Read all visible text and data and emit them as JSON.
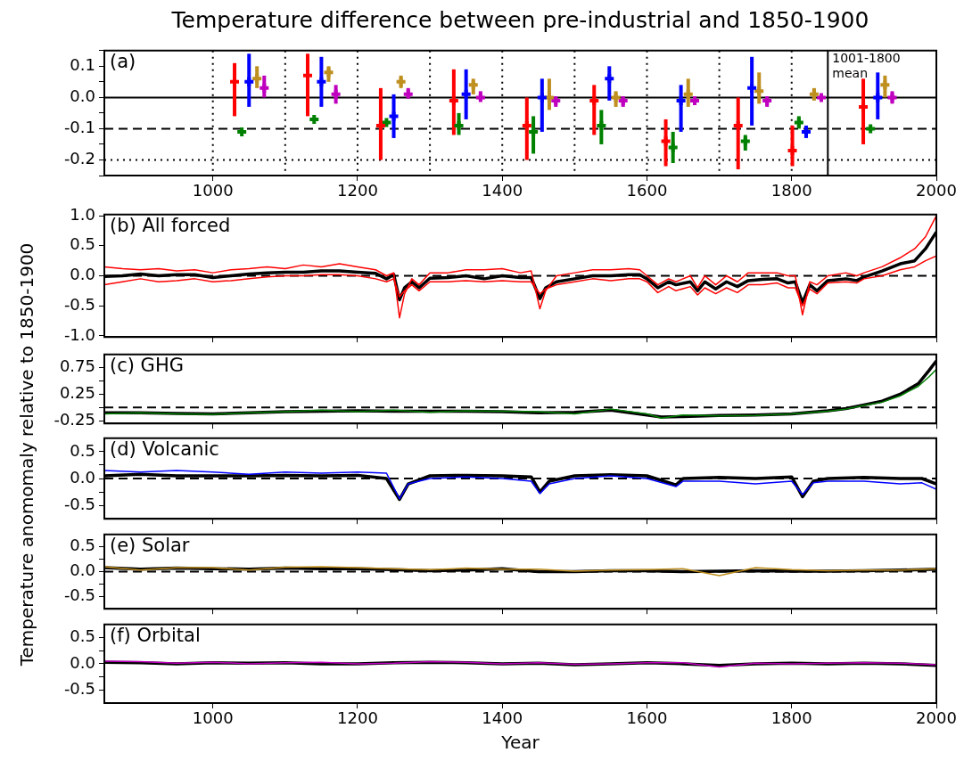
{
  "chart_data": [
    {
      "type": "scatter",
      "title": "Temperature difference between pre-industrial and 1850-1900",
      "annotations": [
        "(a)",
        {
          "text": "1001-1800 mean",
          "x": 1850,
          "y": 0.15
        }
      ],
      "marker": "cross",
      "xlim": [
        850,
        2000
      ],
      "xticks": [
        1000,
        1200,
        1400,
        1600,
        1800,
        2000
      ],
      "ylim": [
        -0.25,
        0.15
      ],
      "yticks": [
        {
          "value": -0.25,
          "label": null
        },
        {
          "value": -0.2,
          "label": "-0.2"
        },
        {
          "value": -0.15,
          "label": null
        },
        {
          "value": -0.1,
          "label": "-0.1"
        },
        {
          "value": -0.05,
          "label": null
        },
        {
          "value": 0,
          "label": "0.0"
        },
        {
          "value": 0.05,
          "label": null
        },
        {
          "value": 0.1,
          "label": "0.1"
        },
        {
          "value": 0.15,
          "label": null
        }
      ],
      "ref_lines": [
        {
          "axis": "y",
          "value": 0,
          "color": "#000000",
          "line_style": "solid"
        },
        {
          "axis": "y",
          "value": -0.1,
          "color": "#000000",
          "line_style": "dashed"
        },
        {
          "axis": "y",
          "value": -0.2,
          "color": "#000000",
          "line_style": "dotted"
        },
        {
          "axis": "x",
          "value": 1000,
          "color": "#000000",
          "line_style": "dotted"
        },
        {
          "axis": "x",
          "value": 1100,
          "color": "#000000",
          "line_style": "dotted"
        },
        {
          "axis": "x",
          "value": 1200,
          "color": "#000000",
          "line_style": "dotted"
        },
        {
          "axis": "x",
          "value": 1300,
          "color": "#000000",
          "line_style": "dotted"
        },
        {
          "axis": "x",
          "value": 1400,
          "color": "#000000",
          "line_style": "dotted"
        },
        {
          "axis": "x",
          "value": 1500,
          "color": "#000000",
          "line_style": "dotted"
        },
        {
          "axis": "x",
          "value": 1600,
          "color": "#000000",
          "line_style": "dotted"
        },
        {
          "axis": "x",
          "value": 1700,
          "color": "#000000",
          "line_style": "dotted"
        },
        {
          "axis": "x",
          "value": 1800,
          "color": "#000000",
          "line_style": "dotted"
        },
        {
          "axis": "x",
          "value": 1850,
          "color": "#000000",
          "line_style": "solid"
        }
      ],
      "series": [
        {
          "color": "#ff0000",
          "x": [
            1030,
            1131,
            1232,
            1333,
            1434,
            1527,
            1626,
            1726,
            1801,
            1899
          ],
          "values": [
            0.05,
            0.07,
            -0.09,
            -0.01,
            -0.09,
            -0.01,
            -0.14,
            -0.09,
            -0.17,
            -0.03
          ],
          "errors": [
            [
              -0.06,
              0.11
            ],
            [
              -0.06,
              0.14
            ],
            [
              -0.2,
              0.03
            ],
            [
              -0.12,
              0.09
            ],
            [
              -0.2,
              0.0
            ],
            [
              -0.12,
              0.04
            ],
            [
              -0.22,
              -0.07
            ],
            [
              -0.23,
              0.0
            ],
            [
              -0.22,
              -0.09
            ],
            [
              -0.15,
              0.06
            ]
          ]
        },
        {
          "color": "#008000",
          "x": [
            1040,
            1140,
            1240,
            1340,
            1443,
            1537,
            1636,
            1736,
            1810,
            1909
          ],
          "values": [
            -0.11,
            -0.07,
            -0.08,
            -0.09,
            -0.11,
            -0.09,
            -0.16,
            -0.14,
            -0.08,
            -0.1
          ],
          "errors": [
            null,
            null,
            null,
            [
              -0.12,
              -0.05
            ],
            [
              -0.18,
              -0.06
            ],
            [
              -0.15,
              -0.04
            ],
            [
              -0.21,
              -0.11
            ],
            [
              -0.17,
              -0.12
            ],
            [
              -0.1,
              -0.06
            ],
            null
          ]
        },
        {
          "color": "#0000ff",
          "x": [
            1050,
            1150,
            1250,
            1350,
            1455,
            1548,
            1647,
            1745,
            1820,
            1919
          ],
          "values": [
            0.05,
            0.05,
            -0.06,
            0.01,
            0.0,
            0.06,
            -0.01,
            0.03,
            -0.11,
            0.0
          ],
          "errors": [
            [
              -0.03,
              0.14
            ],
            [
              -0.03,
              0.13
            ],
            [
              -0.13,
              0.01
            ],
            [
              -0.07,
              0.09
            ],
            [
              -0.11,
              0.06
            ],
            [
              -0.01,
              0.1
            ],
            [
              -0.11,
              0.04
            ],
            [
              -0.09,
              0.13
            ],
            [
              -0.13,
              -0.09
            ],
            [
              -0.07,
              0.08
            ]
          ]
        },
        {
          "color": "#bf8f1f",
          "x": [
            1061,
            1160,
            1260,
            1360,
            1465,
            1557,
            1657,
            1755,
            1831,
            1929
          ],
          "values": [
            0.06,
            0.08,
            0.05,
            0.04,
            0.0,
            0.0,
            0.01,
            0.02,
            0.01,
            0.04
          ],
          "errors": [
            [
              0.03,
              0.1
            ],
            [
              0.05,
              0.1
            ],
            [
              0.03,
              0.07
            ],
            [
              0.01,
              0.06
            ],
            [
              -0.04,
              0.06
            ],
            [
              -0.03,
              0.02
            ],
            [
              -0.03,
              0.06
            ],
            [
              -0.02,
              0.08
            ],
            [
              -0.01,
              0.03
            ],
            [
              0.0,
              0.07
            ]
          ]
        },
        {
          "color": "#bf00bf",
          "x": [
            1071,
            1170,
            1270,
            1370,
            1474,
            1567,
            1666,
            1766,
            1841,
            1939
          ],
          "values": [
            0.03,
            0.01,
            0.01,
            0.0,
            -0.01,
            -0.01,
            -0.01,
            -0.01,
            0.0,
            0.0
          ],
          "errors": [
            [
              0.0,
              0.07
            ],
            [
              -0.02,
              0.04
            ],
            [
              0.0,
              0.03
            ],
            [
              -0.01,
              0.02
            ],
            [
              -0.03,
              0.0
            ],
            [
              -0.03,
              0.0
            ],
            [
              -0.02,
              0.0
            ],
            [
              -0.03,
              0.0
            ],
            [
              -0.01,
              0.01
            ],
            [
              -0.02,
              0.02
            ]
          ]
        }
      ]
    },
    {
      "type": "line",
      "annotations": [
        "(b) All forced"
      ],
      "ylabel": "Temperature anomomaly relative to 1850-1900",
      "marker": "none",
      "line_style": "solid",
      "tick_labels": "y",
      "xlim": [
        850,
        2000
      ],
      "xticks": [
        1000,
        1200,
        1400,
        1600,
        1800,
        2000
      ],
      "ylim": [
        -1.02,
        1.02
      ],
      "yticks": [
        {
          "value": -1,
          "label": "-1.0"
        },
        {
          "value": -0.5,
          "label": "-0.5"
        },
        {
          "value": 0,
          "label": "0.0"
        },
        {
          "value": 0.5,
          "label": "0.5"
        },
        {
          "value": 1,
          "label": "1.0"
        }
      ],
      "ref_lines": [
        {
          "axis": "y",
          "value": 0,
          "color": "#000000",
          "line_style": "dashed"
        }
      ],
      "series": [
        {
          "color": "#ff0000",
          "x": [
            850,
            875,
            900,
            925,
            950,
            975,
            1000,
            1025,
            1050,
            1075,
            1100,
            1125,
            1150,
            1175,
            1200,
            1225,
            1240,
            1250,
            1258,
            1265,
            1275,
            1285,
            1300,
            1325,
            1350,
            1375,
            1400,
            1425,
            1440,
            1452,
            1460,
            1475,
            1500,
            1525,
            1550,
            1575,
            1590,
            1600,
            1615,
            1630,
            1640,
            1660,
            1670,
            1680,
            1695,
            1710,
            1725,
            1740,
            1760,
            1780,
            1795,
            1805,
            1815,
            1825,
            1835,
            1850,
            1875,
            1890,
            1900,
            1925,
            1950,
            1970,
            1985,
            2000
          ],
          "values": [
            0.15,
            0.12,
            0.1,
            0.12,
            0.08,
            0.1,
            0.05,
            0.1,
            0.12,
            0.15,
            0.12,
            0.18,
            0.15,
            0.2,
            0.15,
            0.1,
            0.0,
            0.05,
            -0.7,
            -0.3,
            -0.05,
            -0.15,
            0.05,
            0.05,
            0.1,
            0.1,
            0.12,
            0.05,
            0.08,
            -0.55,
            -0.25,
            0.0,
            0.05,
            0.1,
            0.1,
            0.12,
            0.1,
            0.0,
            -0.15,
            -0.05,
            -0.1,
            0.0,
            -0.2,
            0.0,
            -0.15,
            0.0,
            -0.1,
            0.05,
            0.05,
            0.05,
            0.0,
            0.0,
            -0.65,
            -0.1,
            -0.15,
            0.0,
            0.05,
            0.0,
            0.05,
            0.15,
            0.3,
            0.45,
            0.65,
            1.0
          ]
        },
        {
          "color": "#ff0000",
          "x": [
            850,
            875,
            900,
            925,
            950,
            975,
            1000,
            1025,
            1050,
            1075,
            1100,
            1125,
            1150,
            1175,
            1200,
            1225,
            1240,
            1250,
            1258,
            1265,
            1275,
            1285,
            1300,
            1325,
            1350,
            1375,
            1400,
            1425,
            1440,
            1452,
            1460,
            1475,
            1500,
            1525,
            1550,
            1575,
            1590,
            1600,
            1615,
            1630,
            1640,
            1660,
            1670,
            1680,
            1695,
            1710,
            1725,
            1740,
            1760,
            1780,
            1795,
            1805,
            1815,
            1825,
            1835,
            1850,
            1875,
            1890,
            1900,
            1925,
            1950,
            1970,
            1985,
            2000
          ],
          "values": [
            -0.15,
            -0.1,
            -0.05,
            -0.1,
            -0.08,
            -0.05,
            -0.1,
            -0.08,
            -0.05,
            -0.02,
            0.0,
            0.0,
            0.02,
            0.02,
            0.0,
            -0.05,
            -0.1,
            -0.05,
            -0.35,
            -0.25,
            -0.15,
            -0.25,
            -0.1,
            -0.1,
            -0.08,
            -0.1,
            -0.08,
            -0.1,
            -0.1,
            -0.3,
            -0.22,
            -0.15,
            -0.1,
            -0.05,
            -0.08,
            -0.05,
            -0.05,
            -0.1,
            -0.28,
            -0.18,
            -0.25,
            -0.18,
            -0.32,
            -0.2,
            -0.3,
            -0.2,
            -0.28,
            -0.15,
            -0.15,
            -0.12,
            -0.2,
            -0.2,
            -0.5,
            -0.22,
            -0.3,
            -0.12,
            -0.1,
            -0.12,
            -0.05,
            0.0,
            0.1,
            0.15,
            0.25,
            0.33
          ]
        },
        {
          "color": "#000000",
          "x": [
            850,
            875,
            900,
            925,
            950,
            975,
            1000,
            1025,
            1050,
            1075,
            1100,
            1125,
            1150,
            1175,
            1200,
            1225,
            1240,
            1250,
            1258,
            1265,
            1275,
            1285,
            1300,
            1325,
            1350,
            1375,
            1400,
            1425,
            1440,
            1452,
            1460,
            1475,
            1500,
            1525,
            1550,
            1575,
            1590,
            1600,
            1615,
            1630,
            1640,
            1660,
            1670,
            1680,
            1695,
            1710,
            1725,
            1740,
            1760,
            1780,
            1795,
            1805,
            1815,
            1825,
            1835,
            1850,
            1875,
            1890,
            1900,
            1925,
            1950,
            1970,
            1985,
            2000
          ],
          "values": [
            -0.01,
            0.0,
            0.03,
            0.0,
            0.02,
            0.02,
            -0.03,
            0.0,
            0.03,
            0.05,
            0.06,
            0.06,
            0.08,
            0.08,
            0.06,
            0.04,
            -0.05,
            0.02,
            -0.4,
            -0.2,
            -0.1,
            -0.2,
            -0.04,
            -0.03,
            0.0,
            -0.05,
            0.0,
            -0.03,
            -0.03,
            -0.38,
            -0.2,
            -0.1,
            -0.05,
            0.0,
            0.0,
            0.02,
            0.02,
            -0.05,
            -0.2,
            -0.1,
            -0.15,
            -0.1,
            -0.25,
            -0.1,
            -0.22,
            -0.1,
            -0.18,
            -0.08,
            -0.06,
            -0.05,
            -0.12,
            -0.1,
            -0.45,
            -0.15,
            -0.25,
            -0.08,
            -0.05,
            -0.08,
            -0.02,
            0.08,
            0.2,
            0.25,
            0.45,
            0.73
          ]
        }
      ]
    },
    {
      "type": "line",
      "annotations": [
        "(c) GHG"
      ],
      "marker": "none",
      "line_style": "solid",
      "tick_labels": "y",
      "xlim": [
        850,
        2000
      ],
      "xticks": [
        1000,
        1200,
        1400,
        1600,
        1800,
        2000
      ],
      "ylim": [
        -0.3,
        1.0
      ],
      "yticks": [
        {
          "value": -0.25,
          "label": "-0.25"
        },
        {
          "value": 0,
          "label": null
        },
        {
          "value": 0.25,
          "label": "0.25"
        },
        {
          "value": 0.5,
          "label": null
        },
        {
          "value": 0.75,
          "label": "0.75"
        }
      ],
      "ref_lines": [
        {
          "axis": "y",
          "value": 0,
          "color": "#000000",
          "line_style": "dashed"
        }
      ],
      "series": [
        {
          "color": "#008000",
          "x": [
            850,
            900,
            950,
            1000,
            1050,
            1100,
            1150,
            1200,
            1250,
            1300,
            1350,
            1400,
            1450,
            1500,
            1550,
            1600,
            1620,
            1650,
            1700,
            1750,
            1800,
            1850,
            1875,
            1900,
            1925,
            1950,
            1975,
            1990,
            2000
          ],
          "values": [
            -0.12,
            -0.1,
            -0.12,
            -0.13,
            -0.1,
            -0.08,
            -0.05,
            -0.08,
            -0.05,
            -0.09,
            -0.06,
            -0.07,
            -0.08,
            -0.12,
            -0.03,
            -0.12,
            -0.2,
            -0.14,
            -0.16,
            -0.15,
            -0.12,
            -0.07,
            -0.03,
            0.04,
            0.1,
            0.22,
            0.4,
            0.58,
            0.72
          ]
        },
        {
          "color": "#000000",
          "x": [
            850,
            900,
            950,
            1000,
            1050,
            1100,
            1150,
            1200,
            1250,
            1300,
            1350,
            1400,
            1450,
            1500,
            1550,
            1600,
            1620,
            1650,
            1700,
            1750,
            1800,
            1850,
            1875,
            1900,
            1925,
            1950,
            1975,
            1990,
            2000
          ],
          "values": [
            -0.1,
            -0.1,
            -0.11,
            -0.12,
            -0.1,
            -0.08,
            -0.07,
            -0.06,
            -0.07,
            -0.07,
            -0.07,
            -0.08,
            -0.1,
            -0.09,
            -0.05,
            -0.14,
            -0.18,
            -0.17,
            -0.15,
            -0.14,
            -0.12,
            -0.06,
            -0.02,
            0.05,
            0.12,
            0.25,
            0.45,
            0.7,
            0.88
          ]
        }
      ]
    },
    {
      "type": "line",
      "annotations": [
        "(d) Volcanic"
      ],
      "marker": "none",
      "line_style": "solid",
      "tick_labels": "y",
      "xlim": [
        850,
        2000
      ],
      "xticks": [
        1000,
        1200,
        1400,
        1600,
        1800,
        2000
      ],
      "ylim": [
        -0.75,
        0.75
      ],
      "yticks": [
        {
          "value": -0.5,
          "label": "-0.5"
        },
        {
          "value": -0.25,
          "label": null
        },
        {
          "value": 0,
          "label": "0.0"
        },
        {
          "value": 0.25,
          "label": null
        },
        {
          "value": 0.5,
          "label": "0.5"
        }
      ],
      "ref_lines": [
        {
          "axis": "y",
          "value": 0,
          "color": "#000000",
          "line_style": "dashed"
        }
      ],
      "series": [
        {
          "color": "#0000ff",
          "x": [
            850,
            900,
            950,
            1000,
            1050,
            1100,
            1150,
            1200,
            1240,
            1258,
            1270,
            1300,
            1350,
            1400,
            1440,
            1452,
            1465,
            1500,
            1550,
            1600,
            1640,
            1650,
            1700,
            1750,
            1800,
            1815,
            1830,
            1850,
            1900,
            1950,
            1980,
            2000
          ],
          "values": [
            0.15,
            0.12,
            0.15,
            0.12,
            0.08,
            0.12,
            0.1,
            0.12,
            0.1,
            -0.38,
            -0.1,
            0.0,
            0.03,
            0.0,
            -0.05,
            -0.28,
            -0.1,
            0.0,
            0.05,
            0.0,
            -0.15,
            -0.05,
            -0.05,
            -0.1,
            -0.05,
            -0.3,
            -0.08,
            -0.05,
            -0.05,
            -0.1,
            -0.08,
            -0.2
          ]
        },
        {
          "color": "#000000",
          "x": [
            850,
            900,
            950,
            1000,
            1050,
            1100,
            1150,
            1200,
            1240,
            1258,
            1270,
            1300,
            1350,
            1400,
            1440,
            1452,
            1465,
            1500,
            1550,
            1600,
            1640,
            1650,
            1700,
            1750,
            1800,
            1815,
            1830,
            1850,
            1900,
            1950,
            1980,
            2000
          ],
          "values": [
            0.05,
            0.08,
            0.05,
            0.05,
            0.05,
            0.06,
            0.05,
            0.06,
            0.0,
            -0.39,
            -0.1,
            0.05,
            0.06,
            0.05,
            0.03,
            -0.25,
            -0.05,
            0.05,
            0.07,
            0.05,
            -0.12,
            0.0,
            0.02,
            0.0,
            0.03,
            -0.34,
            -0.05,
            0.0,
            0.02,
            0.0,
            0.0,
            -0.1
          ]
        }
      ]
    },
    {
      "type": "line",
      "annotations": [
        "(e) Solar"
      ],
      "marker": "none",
      "line_style": "solid",
      "tick_labels": "y",
      "xlim": [
        850,
        2000
      ],
      "xticks": [
        1000,
        1200,
        1400,
        1600,
        1800,
        2000
      ],
      "ylim": [
        -0.75,
        0.75
      ],
      "yticks": [
        {
          "value": -0.5,
          "label": "-0.5"
        },
        {
          "value": -0.25,
          "label": null
        },
        {
          "value": 0,
          "label": "0.0"
        },
        {
          "value": 0.25,
          "label": null
        },
        {
          "value": 0.5,
          "label": "0.5"
        }
      ],
      "ref_lines": [
        {
          "axis": "y",
          "value": 0,
          "color": "#000000",
          "line_style": "dashed"
        }
      ],
      "series": [
        {
          "color": "#bf8f1f",
          "x": [
            850,
            900,
            950,
            1000,
            1050,
            1100,
            1150,
            1200,
            1250,
            1300,
            1350,
            1400,
            1450,
            1500,
            1550,
            1600,
            1650,
            1700,
            1750,
            1800,
            1850,
            1900,
            1950,
            2000
          ],
          "values": [
            0.1,
            0.03,
            0.08,
            0.08,
            0.03,
            0.09,
            0.1,
            0.08,
            0.06,
            0.04,
            0.07,
            0.05,
            0.05,
            0.01,
            0.03,
            0.04,
            0.06,
            -0.08,
            0.08,
            0.04,
            0.02,
            0.03,
            0.03,
            0.06
          ]
        },
        {
          "color": "#000000",
          "x": [
            850,
            900,
            950,
            1000,
            1050,
            1100,
            1150,
            1200,
            1250,
            1300,
            1350,
            1400,
            1450,
            1500,
            1550,
            1600,
            1650,
            1700,
            1750,
            1800,
            1850,
            1900,
            1950,
            2000
          ],
          "values": [
            0.08,
            0.05,
            0.07,
            0.06,
            0.05,
            0.07,
            0.06,
            0.06,
            0.04,
            0.02,
            0.03,
            0.06,
            0.0,
            0.0,
            0.02,
            0.02,
            0.0,
            0.01,
            0.02,
            0.01,
            0.01,
            0.02,
            0.03,
            0.05
          ]
        }
      ]
    },
    {
      "type": "line",
      "annotations": [
        "(f) Orbital"
      ],
      "xlabel": "Year",
      "marker": "none",
      "line_style": "solid",
      "xlim": [
        850,
        2000
      ],
      "xticks": [
        1000,
        1200,
        1400,
        1600,
        1800,
        2000
      ],
      "ylim": [
        -0.75,
        0.75
      ],
      "yticks": [
        {
          "value": -0.5,
          "label": "-0.5"
        },
        {
          "value": -0.25,
          "label": null
        },
        {
          "value": 0,
          "label": "0.0"
        },
        {
          "value": 0.25,
          "label": null
        },
        {
          "value": 0.5,
          "label": "0.5"
        }
      ],
      "series": [
        {
          "color": "#bf00bf",
          "x": [
            850,
            900,
            950,
            1000,
            1050,
            1100,
            1150,
            1200,
            1250,
            1300,
            1350,
            1400,
            1450,
            1500,
            1550,
            1600,
            1650,
            1700,
            1750,
            1800,
            1850,
            1900,
            1950,
            2000
          ],
          "values": [
            0.05,
            0.04,
            0.01,
            0.03,
            0.0,
            0.02,
            0.03,
            0.0,
            0.01,
            0.04,
            0.03,
            0.0,
            0.02,
            -0.01,
            0.0,
            0.02,
            0.02,
            -0.06,
            0.01,
            0.0,
            0.01,
            0.02,
            0.01,
            -0.02
          ]
        },
        {
          "color": "#000000",
          "x": [
            850,
            900,
            950,
            1000,
            1050,
            1100,
            1150,
            1200,
            1250,
            1300,
            1350,
            1400,
            1450,
            1500,
            1550,
            1600,
            1650,
            1700,
            1750,
            1800,
            1850,
            1900,
            1950,
            2000
          ],
          "values": [
            0.03,
            0.02,
            0.0,
            0.02,
            0.01,
            0.02,
            0.0,
            0.0,
            0.02,
            0.03,
            0.02,
            0.0,
            0.01,
            -0.02,
            0.0,
            0.02,
            0.0,
            -0.03,
            0.0,
            0.01,
            0.0,
            0.01,
            0.0,
            -0.03
          ]
        }
      ]
    }
  ]
}
